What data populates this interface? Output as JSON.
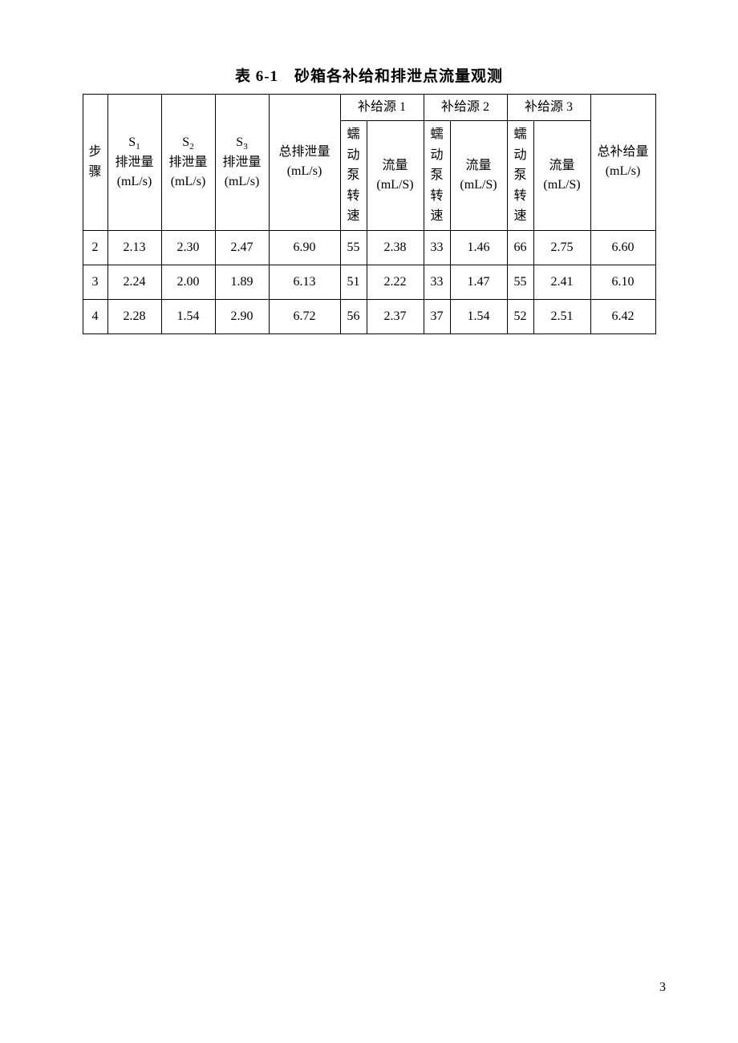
{
  "title": "表 6-1　砂箱各补给和排泄点流量观测",
  "table": {
    "columns": {
      "step": "步骤",
      "s1_label": "S",
      "s1_sub": "1",
      "s2_label": "S",
      "s2_sub": "2",
      "s3_label": "S",
      "s3_sub": "3",
      "drain_suffix_line1": "排泄量",
      "drain_suffix_line2": "(mL/s)",
      "total_drain_line1": "总排泄量",
      "total_drain_line2": "(mL/s)",
      "src1": "补给源 1",
      "src2": "补给源 2",
      "src3": "补给源 3",
      "pump_lines": [
        "蠕",
        "动",
        "泵",
        "转",
        "速"
      ],
      "flow_line1": "流量",
      "flow_line2": "(mL/S)",
      "total_supply_line1": "总补给量",
      "total_supply_line2": "(mL/s)"
    },
    "rows": [
      {
        "step": "2",
        "s1": "2.13",
        "s2": "2.30",
        "s3": "2.47",
        "total_drain": "6.90",
        "p1": "55",
        "f1": "2.38",
        "p2": "33",
        "f2": "1.46",
        "p3": "66",
        "f3": "2.75",
        "total_supply": "6.60"
      },
      {
        "step": "3",
        "s1": "2.24",
        "s2": "2.00",
        "s3": "1.89",
        "total_drain": "6.13",
        "p1": "51",
        "f1": "2.22",
        "p2": "33",
        "f2": "1.47",
        "p3": "55",
        "f3": "2.41",
        "total_supply": "6.10"
      },
      {
        "step": "4",
        "s1": "2.28",
        "s2": "1.54",
        "s3": "2.90",
        "total_drain": "6.72",
        "p1": "56",
        "f1": "2.37",
        "p2": "37",
        "f2": "1.54",
        "p3": "52",
        "f3": "2.51",
        "total_supply": "6.42"
      }
    ]
  },
  "footer_mark": "",
  "page_number": "3"
}
